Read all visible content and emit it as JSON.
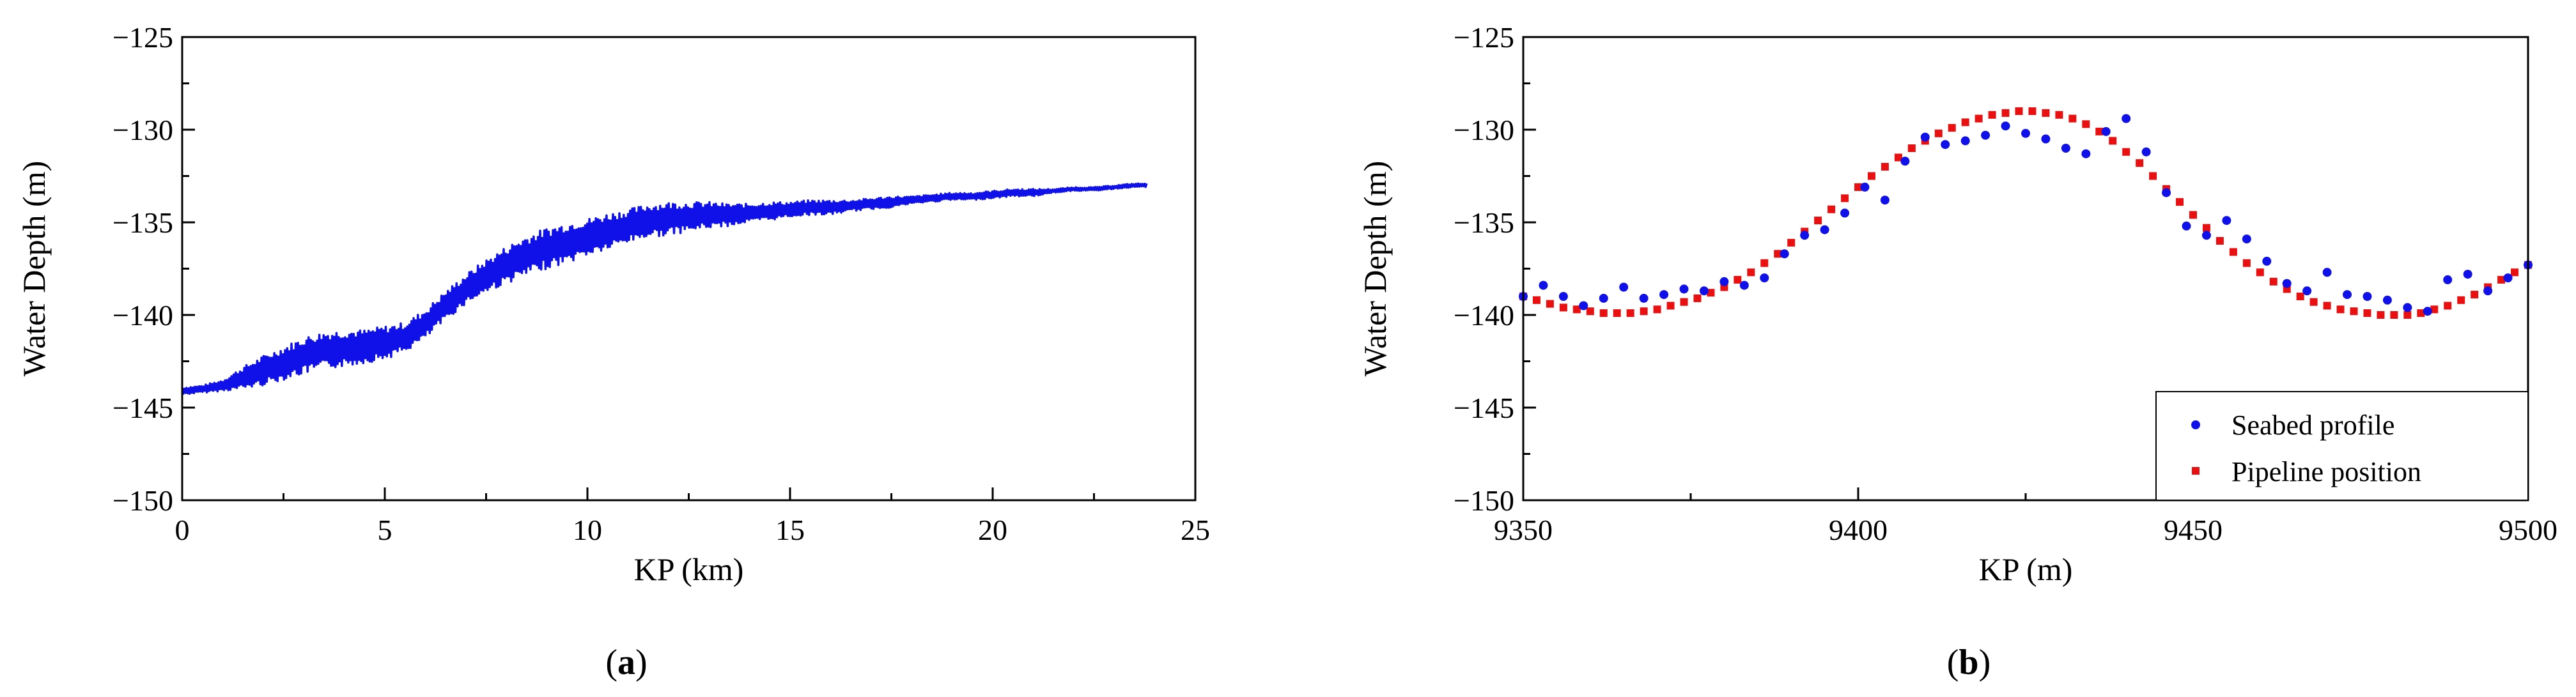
{
  "chart_data": [
    {
      "panel": "a",
      "type": "line",
      "caption": "a",
      "xlabel": "KP (km)",
      "ylabel": "Water Depth (m)",
      "xlim": [
        0,
        25
      ],
      "ylim": [
        -150,
        -125
      ],
      "xticks": [
        0,
        5,
        10,
        15,
        20,
        25
      ],
      "yticks": [
        -150,
        -145,
        -140,
        -135,
        -130,
        -125
      ],
      "grid": false,
      "colors": {
        "line": "#1010e8"
      },
      "series": [
        {
          "x": [
            0,
            0.5,
            1.0,
            1.5,
            2.0,
            2.5,
            3.0,
            3.5,
            4.0,
            4.5,
            5.0,
            5.5,
            6.0,
            6.5,
            7.0,
            7.5,
            8.0,
            8.5,
            9.0,
            9.5,
            10.0,
            10.5,
            11.0,
            11.5,
            12.0,
            12.5,
            13.0,
            13.5,
            14.0,
            14.5,
            15.0,
            15.5,
            16.0,
            16.5,
            17.0,
            17.5,
            18.0,
            18.5,
            19.0,
            19.5,
            20.0,
            20.5,
            21.0,
            21.5,
            22.0,
            22.5,
            23.0,
            23.5,
            23.8
          ],
          "values": [
            -144.1,
            -144.0,
            -143.8,
            -143.4,
            -143.0,
            -142.6,
            -142.2,
            -141.9,
            -141.8,
            -141.7,
            -141.5,
            -141.2,
            -140.5,
            -139.5,
            -138.6,
            -137.9,
            -137.3,
            -136.8,
            -136.4,
            -136.1,
            -135.8,
            -135.5,
            -135.2,
            -134.9,
            -134.8,
            -134.7,
            -134.6,
            -134.6,
            -134.5,
            -134.4,
            -134.3,
            -134.2,
            -134.2,
            -134.1,
            -134.0,
            -133.9,
            -133.8,
            -133.7,
            -133.6,
            -133.6,
            -133.5,
            -133.4,
            -133.4,
            -133.3,
            -133.2,
            -133.2,
            -133.1,
            -133.0,
            -133.0
          ],
          "noise_amplitude": [
            0.2,
            0.2,
            0.3,
            0.6,
            0.8,
            0.9,
            1.0,
            1.0,
            1.0,
            0.9,
            0.9,
            0.8,
            0.8,
            0.8,
            0.8,
            0.9,
            1.0,
            1.1,
            1.1,
            1.1,
            1.0,
            1.0,
            0.9,
            0.9,
            0.9,
            0.8,
            0.7,
            0.6,
            0.5,
            0.5,
            0.4,
            0.4,
            0.4,
            0.3,
            0.3,
            0.3,
            0.2,
            0.2,
            0.2,
            0.2,
            0.2,
            0.2,
            0.2,
            0.1,
            0.1,
            0.1,
            0.1,
            0.1,
            0.1
          ]
        }
      ]
    },
    {
      "panel": "b",
      "type": "scatter",
      "caption": "b",
      "xlabel": "KP (m)",
      "ylabel": "Water Depth (m)",
      "xlim": [
        9350,
        9500
      ],
      "ylim": [
        -150,
        -125
      ],
      "xticks": [
        9350,
        9400,
        9450,
        9500
      ],
      "yticks": [
        -150,
        -145,
        -140,
        -135,
        -130,
        -125
      ],
      "grid": false,
      "legend_position": "bottom-right",
      "series": [
        {
          "name": "Seabed profile",
          "marker": "circle",
          "color": "#1010e8",
          "x": [
            9350,
            9353,
            9356,
            9359,
            9362,
            9365,
            9368,
            9371,
            9374,
            9377,
            9380,
            9383,
            9386,
            9389,
            9392,
            9395,
            9398,
            9401,
            9404,
            9407,
            9410,
            9413,
            9416,
            9419,
            9422,
            9425,
            9428,
            9431,
            9434,
            9437,
            9440,
            9443,
            9446,
            9449,
            9452,
            9455,
            9458,
            9461,
            9464,
            9467,
            9470,
            9473,
            9476,
            9479,
            9482,
            9485,
            9488,
            9491,
            9494,
            9497,
            9500
          ],
          "values": [
            -139.0,
            -138.4,
            -139.0,
            -139.5,
            -139.1,
            -138.5,
            -139.1,
            -138.9,
            -138.6,
            -138.7,
            -138.2,
            -138.4,
            -138.0,
            -136.7,
            -135.7,
            -135.4,
            -134.5,
            -133.1,
            -133.8,
            -131.7,
            -130.4,
            -130.8,
            -130.6,
            -130.3,
            -129.8,
            -130.2,
            -130.5,
            -131.0,
            -131.3,
            -130.1,
            -129.4,
            -131.2,
            -133.4,
            -135.2,
            -135.7,
            -134.9,
            -135.9,
            -137.1,
            -138.3,
            -138.7,
            -137.7,
            -138.9,
            -139.0,
            -139.2,
            -139.6,
            -139.8,
            -138.1,
            -137.8,
            -138.7,
            -138.0,
            -137.3
          ]
        },
        {
          "name": "Pipeline position",
          "marker": "square",
          "color": "#e81010",
          "x": [
            9350,
            9352,
            9354,
            9356,
            9358,
            9360,
            9362,
            9364,
            9366,
            9368,
            9370,
            9372,
            9374,
            9376,
            9378,
            9380,
            9382,
            9384,
            9386,
            9388,
            9390,
            9392,
            9394,
            9396,
            9398,
            9400,
            9402,
            9404,
            9406,
            9408,
            9410,
            9412,
            9414,
            9416,
            9418,
            9420,
            9422,
            9424,
            9426,
            9428,
            9430,
            9432,
            9434,
            9436,
            9438,
            9440,
            9442,
            9444,
            9446,
            9448,
            9450,
            9452,
            9454,
            9456,
            9458,
            9460,
            9462,
            9464,
            9466,
            9468,
            9470,
            9472,
            9474,
            9476,
            9478,
            9480,
            9482,
            9484,
            9486,
            9488,
            9490,
            9492,
            9494,
            9496,
            9498,
            9500
          ],
          "values": [
            -139.0,
            -139.2,
            -139.4,
            -139.6,
            -139.7,
            -139.8,
            -139.9,
            -139.9,
            -139.9,
            -139.8,
            -139.7,
            -139.5,
            -139.3,
            -139.1,
            -138.8,
            -138.5,
            -138.1,
            -137.7,
            -137.2,
            -136.7,
            -136.1,
            -135.5,
            -134.9,
            -134.3,
            -133.7,
            -133.1,
            -132.5,
            -132.0,
            -131.5,
            -131.0,
            -130.6,
            -130.2,
            -129.9,
            -129.6,
            -129.4,
            -129.2,
            -129.1,
            -129.0,
            -129.0,
            -129.1,
            -129.2,
            -129.4,
            -129.7,
            -130.1,
            -130.6,
            -131.2,
            -131.8,
            -132.5,
            -133.2,
            -133.9,
            -134.6,
            -135.3,
            -136.0,
            -136.6,
            -137.2,
            -137.7,
            -138.2,
            -138.6,
            -139.0,
            -139.3,
            -139.5,
            -139.7,
            -139.8,
            -139.9,
            -140.0,
            -140.0,
            -140.0,
            -139.9,
            -139.7,
            -139.5,
            -139.2,
            -138.9,
            -138.5,
            -138.1,
            -137.7,
            -137.3
          ]
        }
      ]
    }
  ]
}
